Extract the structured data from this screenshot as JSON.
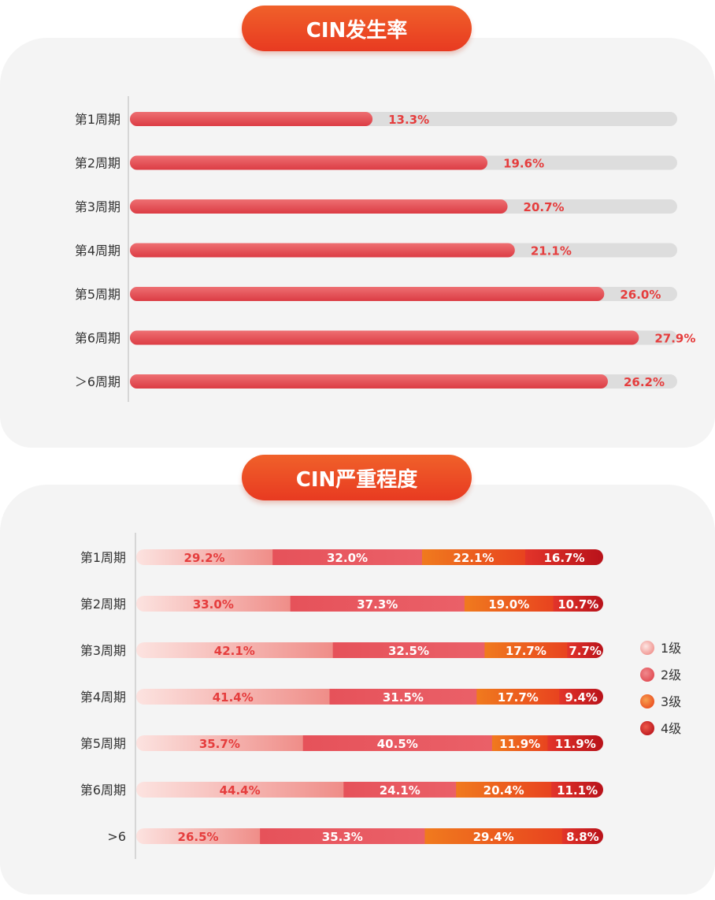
{
  "chart_data": [
    {
      "type": "bar",
      "title": "CIN发生率",
      "categories": [
        "第1周期",
        "第2周期",
        "第3周期",
        "第4周期",
        "第5周期",
        "第6周期",
        "＞6周期"
      ],
      "values": [
        13.3,
        19.6,
        20.7,
        21.1,
        26.0,
        27.9,
        26.2
      ],
      "value_labels": [
        "13.3%",
        "19.6%",
        "20.7%",
        "21.1%",
        "26.0%",
        "27.9%",
        "26.2%"
      ],
      "orientation": "horizontal",
      "xlim": [
        0,
        30
      ],
      "grid": false,
      "colors": {
        "bar": "#e4494f",
        "track": "#dddddd",
        "label": "#e53d3d"
      }
    },
    {
      "type": "bar",
      "stacked": true,
      "title": "CIN严重程度",
      "orientation": "horizontal",
      "categories": [
        "第1周期",
        "第2周期",
        "第3周期",
        "第4周期",
        "第5周期",
        "第6周期",
        ">6"
      ],
      "series": [
        {
          "name": "1级",
          "color": "#f2a5a0",
          "values": [
            29.2,
            33.0,
            42.1,
            41.4,
            35.7,
            44.4,
            26.5
          ]
        },
        {
          "name": "2级",
          "color": "#e6525a",
          "values": [
            32.0,
            37.3,
            32.5,
            31.5,
            40.5,
            24.1,
            35.3
          ]
        },
        {
          "name": "3级",
          "color": "#ec5a22",
          "values": [
            22.1,
            19.0,
            17.7,
            17.7,
            11.9,
            20.4,
            29.4
          ]
        },
        {
          "name": "4级",
          "color": "#c8171e",
          "values": [
            16.7,
            10.7,
            7.7,
            9.4,
            11.9,
            11.1,
            8.8
          ]
        }
      ],
      "value_labels": [
        [
          "29.2%",
          "32.0%",
          "22.1%",
          "16.7%"
        ],
        [
          "33.0%",
          "37.3%",
          "19.0%",
          "10.7%"
        ],
        [
          "42.1%",
          "32.5%",
          "17.7%",
          "7.7%"
        ],
        [
          "41.4%",
          "31.5%",
          "17.7%",
          "9.4%"
        ],
        [
          "35.7%",
          "40.5%",
          "11.9%",
          "11.9%"
        ],
        [
          "44.4%",
          "24.1%",
          "20.4%",
          "11.1%"
        ],
        [
          "26.5%",
          "35.3%",
          "29.4%",
          "8.8%"
        ]
      ],
      "xlim": [
        0,
        100
      ],
      "grid": false,
      "legend": {
        "position": "right",
        "entries": [
          "1级",
          "2级",
          "3级",
          "4级"
        ]
      }
    }
  ]
}
